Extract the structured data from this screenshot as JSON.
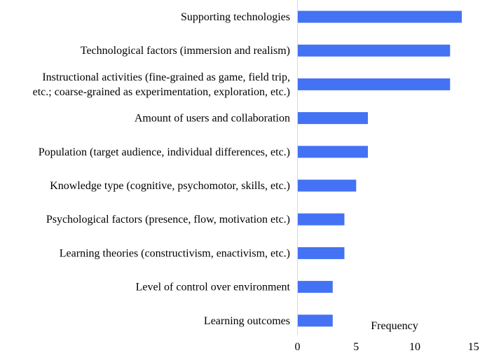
{
  "chart_data": {
    "type": "bar",
    "orientation": "horizontal",
    "categories": [
      "Supporting technologies",
      "Technological factors (immersion and realism)",
      "Instructional activities (fine-grained as game, field trip, etc.; coarse-grained as experimentation, exploration, etc.)",
      "Amount of users and collaboration",
      "Population (target audience, individual differences, etc.)",
      "Knowledge type (cognitive, psychomotor, skills, etc.)",
      "Psychological factors (presence, flow, motivation etc.)",
      "Learning theories (constructivism, enactivism, etc.)",
      "Level of control over environment",
      "Learning outcomes"
    ],
    "category_lines": [
      [
        "Supporting technologies"
      ],
      [
        "Technological factors (immersion and realism)"
      ],
      [
        "Instructional activities (fine-grained as game, field trip,",
        "etc.; coarse-grained as experimentation, exploration, etc.)"
      ],
      [
        "Amount of users and collaboration"
      ],
      [
        "Population (target audience, individual differences, etc.)"
      ],
      [
        "Knowledge type (cognitive, psychomotor, skills, etc.)"
      ],
      [
        "Psychological factors (presence, flow, motivation etc.)"
      ],
      [
        "Learning theories (constructivism, enactivism, etc.)"
      ],
      [
        "Level of control over environment"
      ],
      [
        "Learning outcomes"
      ]
    ],
    "values": [
      14,
      13,
      13,
      6,
      6,
      5,
      4,
      4,
      3,
      3
    ],
    "xlabel": "Frequency",
    "xlim": [
      0,
      15
    ],
    "xticks": [
      0,
      5,
      10,
      15
    ],
    "grid": false,
    "bar_color": "#4472f4",
    "axis_color": "#d9d9d9"
  }
}
